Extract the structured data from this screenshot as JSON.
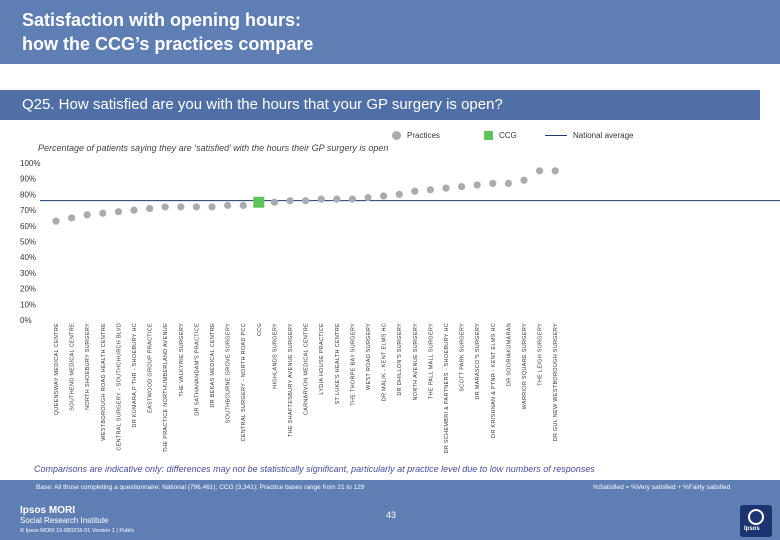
{
  "title": {
    "line1": "Satisfaction with opening hours:",
    "line2": "how the CCG’s practices compare"
  },
  "question": "Q25. How satisfied are you with the hours that your GP surgery is open?",
  "legend": {
    "practices": "Practices",
    "ccg": "CCG",
    "national": "National average"
  },
  "subtitle": "Percentage of patients saying they are ‘satisfied’ with the hours their GP surgery is open",
  "colors": {
    "practice_marker": "#a9abb0",
    "ccg_marker": "#5ec35a",
    "national_line": "#1f3a6e",
    "header": "#5f7fb4",
    "question_band": "#4f6fa6"
  },
  "chart_data": {
    "type": "scatter",
    "y_ticks": [
      "0%",
      "10%",
      "20%",
      "30%",
      "40%",
      "50%",
      "60%",
      "70%",
      "80%",
      "90%",
      "100%"
    ],
    "ylim": [
      0,
      100
    ],
    "national_average": 76,
    "points": [
      {
        "label": "QUEENSWAY MEDICAL CENTRE",
        "value": 63,
        "type": "practice"
      },
      {
        "label": "SOUTHEND MEDICAL CENTRE",
        "value": 65,
        "type": "practice"
      },
      {
        "label": "NORTH SHOEBURY SURGERY",
        "value": 67,
        "type": "practice"
      },
      {
        "label": "WESTBOROUGH ROAD HEALTH CENTRE",
        "value": 68,
        "type": "practice"
      },
      {
        "label": "CENTRAL SURGERY - SOUTHCHURCH BLVD",
        "value": 69,
        "type": "practice"
      },
      {
        "label": "DR KUMARA,P THR - SHOEBURY HC",
        "value": 70,
        "type": "practice"
      },
      {
        "label": "EASTWOOD GROUP PRACTICE",
        "value": 71,
        "type": "practice"
      },
      {
        "label": "THE PRACTICE NORTHUMBERLAND AVENUE",
        "value": 72,
        "type": "practice"
      },
      {
        "label": "THE VALKYRIE SURGERY",
        "value": 72,
        "type": "practice"
      },
      {
        "label": "DR SATHANANDAM'S PRACTICE",
        "value": 72,
        "type": "practice"
      },
      {
        "label": "DR BEKAS MEDICAL CENTRE",
        "value": 72,
        "type": "practice"
      },
      {
        "label": "SOUTHBOURNE GROVE SURGERY",
        "value": 73,
        "type": "practice"
      },
      {
        "label": "CENTRAL SURGERY - NORTH ROAD PCC",
        "value": 73,
        "type": "practice"
      },
      {
        "label": "CCG",
        "value": 75,
        "type": "ccg"
      },
      {
        "label": "HIGHLANDS SURGERY",
        "value": 75,
        "type": "practice"
      },
      {
        "label": "THE SHAFTESBURY AVENUE SURGERY",
        "value": 76,
        "type": "practice"
      },
      {
        "label": "CARNARVON MEDICAL CENTRE",
        "value": 76,
        "type": "practice"
      },
      {
        "label": "LYDIA HOUSE PRACTICE",
        "value": 77,
        "type": "practice"
      },
      {
        "label": "ST LUKE'S HEALTH CENTRE",
        "value": 77,
        "type": "practice"
      },
      {
        "label": "THE THORPE BAY SURGERY",
        "value": 77,
        "type": "practice"
      },
      {
        "label": "WEST ROAD SURGERY",
        "value": 78,
        "type": "practice"
      },
      {
        "label": "DR MALIK - KENT ELMS HC",
        "value": 79,
        "type": "practice"
      },
      {
        "label": "DR DHILLON'S SURGERY",
        "value": 80,
        "type": "practice"
      },
      {
        "label": "NORTH AVENUE SURGERY",
        "value": 82,
        "type": "practice"
      },
      {
        "label": "THE PALL MALL SURGERY",
        "value": 83,
        "type": "practice"
      },
      {
        "label": "DR SCHEMBRI & PARTNERS - SHOEBURY HC",
        "value": 84,
        "type": "practice"
      },
      {
        "label": "SCOTT PARK SURGERY",
        "value": 85,
        "type": "practice"
      },
      {
        "label": "DR MARASCO'S SURGERY",
        "value": 86,
        "type": "practice"
      },
      {
        "label": "DR KRISHNAN & PTNR - KENT ELMS HC",
        "value": 87,
        "type": "practice"
      },
      {
        "label": "DR SOORIAKUMARAN",
        "value": 87,
        "type": "practice"
      },
      {
        "label": "WARRIOR SQUARE SURGERY",
        "value": 89,
        "type": "practice"
      },
      {
        "label": "THE LEIGH SURGERY",
        "value": 95,
        "type": "practice"
      },
      {
        "label": "DR GUL NEW WESTBOROUGH SURGERY",
        "value": 95,
        "type": "practice"
      }
    ]
  },
  "comparison_note": "Comparisons are indicative only: differences may not be statistically significant, particularly at practice level due to low numbers of responses",
  "base_text": "Base: All those completing a questionnaire: National (796,461); CCG (3,341); Practice bases range from 21 to 129",
  "satisfied_def": "%Satisfied = %Very satisfied + %Fairly satisfied",
  "page_number": "43",
  "brand": {
    "name": "Ipsos MORI",
    "unit": "Social Research Institute"
  },
  "copyright": "© Ipsos MORI     15-080216-01 Version 1 | Public",
  "logo_text": "Ipsos"
}
